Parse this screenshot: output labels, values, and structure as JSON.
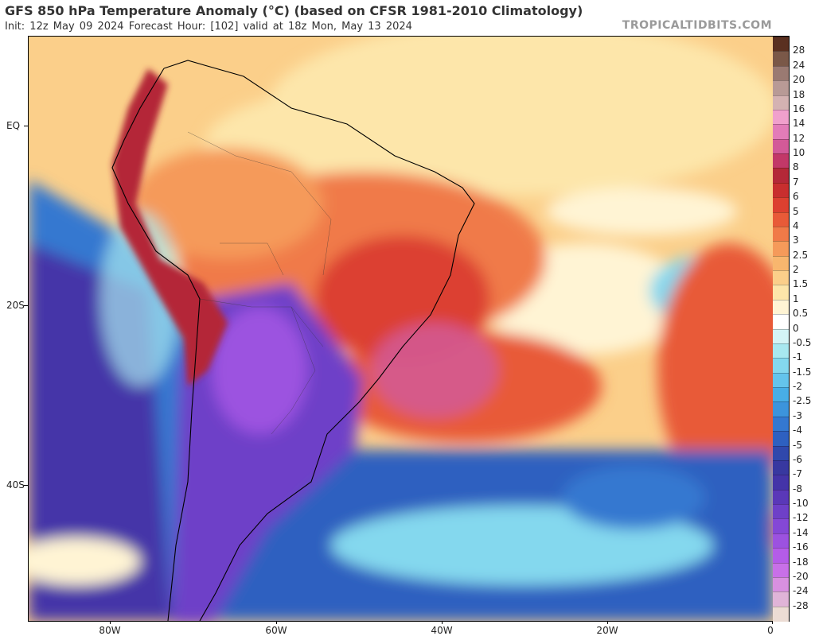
{
  "header": {
    "title": "GFS 850 hPa Temperature Anomaly (°C) (based on CFSR 1981-2010 Climatology)",
    "subtitle": "Init: 12z May 09 2024   Forecast Hour: [102]   valid at 18z Mon, May 13 2024",
    "brand": "TROPICALTIDBITS.COM"
  },
  "map": {
    "latitude_labels": [
      "EQ",
      "20S",
      "40S"
    ],
    "longitude_labels": [
      "80W",
      "60W",
      "40W",
      "20W",
      "0"
    ]
  },
  "colorbar": {
    "labels": [
      "28",
      "24",
      "20",
      "18",
      "16",
      "14",
      "12",
      "10",
      "8",
      "7",
      "6",
      "5",
      "4",
      "3",
      "2.5",
      "2",
      "1.5",
      "1",
      "0.5",
      "0",
      "-0.5",
      "-1",
      "-1.5",
      "-2",
      "-2.5",
      "-3",
      "-4",
      "-5",
      "-6",
      "-7",
      "-8",
      "-10",
      "-12",
      "-14",
      "-16",
      "-18",
      "-20",
      "-24",
      "-28"
    ],
    "colors": [
      "#5a3020",
      "#7a5848",
      "#9a7a72",
      "#b89a96",
      "#d4b2b2",
      "#f0a0cc",
      "#e27cb8",
      "#d25a98",
      "#c23868",
      "#b42838",
      "#c82e2e",
      "#dc4030",
      "#e85a38",
      "#f07a48",
      "#f59a5a",
      "#f8b66e",
      "#fbcf8a",
      "#fde6aa",
      "#fff4d4",
      "#ffffff",
      "#d4f4f6",
      "#a8e8f0",
      "#84d8ee",
      "#64c4ec",
      "#48aee6",
      "#3c94dc",
      "#3478d0",
      "#2e60c0",
      "#3048ac",
      "#3838a0",
      "#4434a8",
      "#5a38b8",
      "#6e40c8",
      "#8448d6",
      "#9c52e0",
      "#b45ce8",
      "#c870e8",
      "#d890e0",
      "#e0b4d8",
      "#ecdcd4"
    ]
  }
}
